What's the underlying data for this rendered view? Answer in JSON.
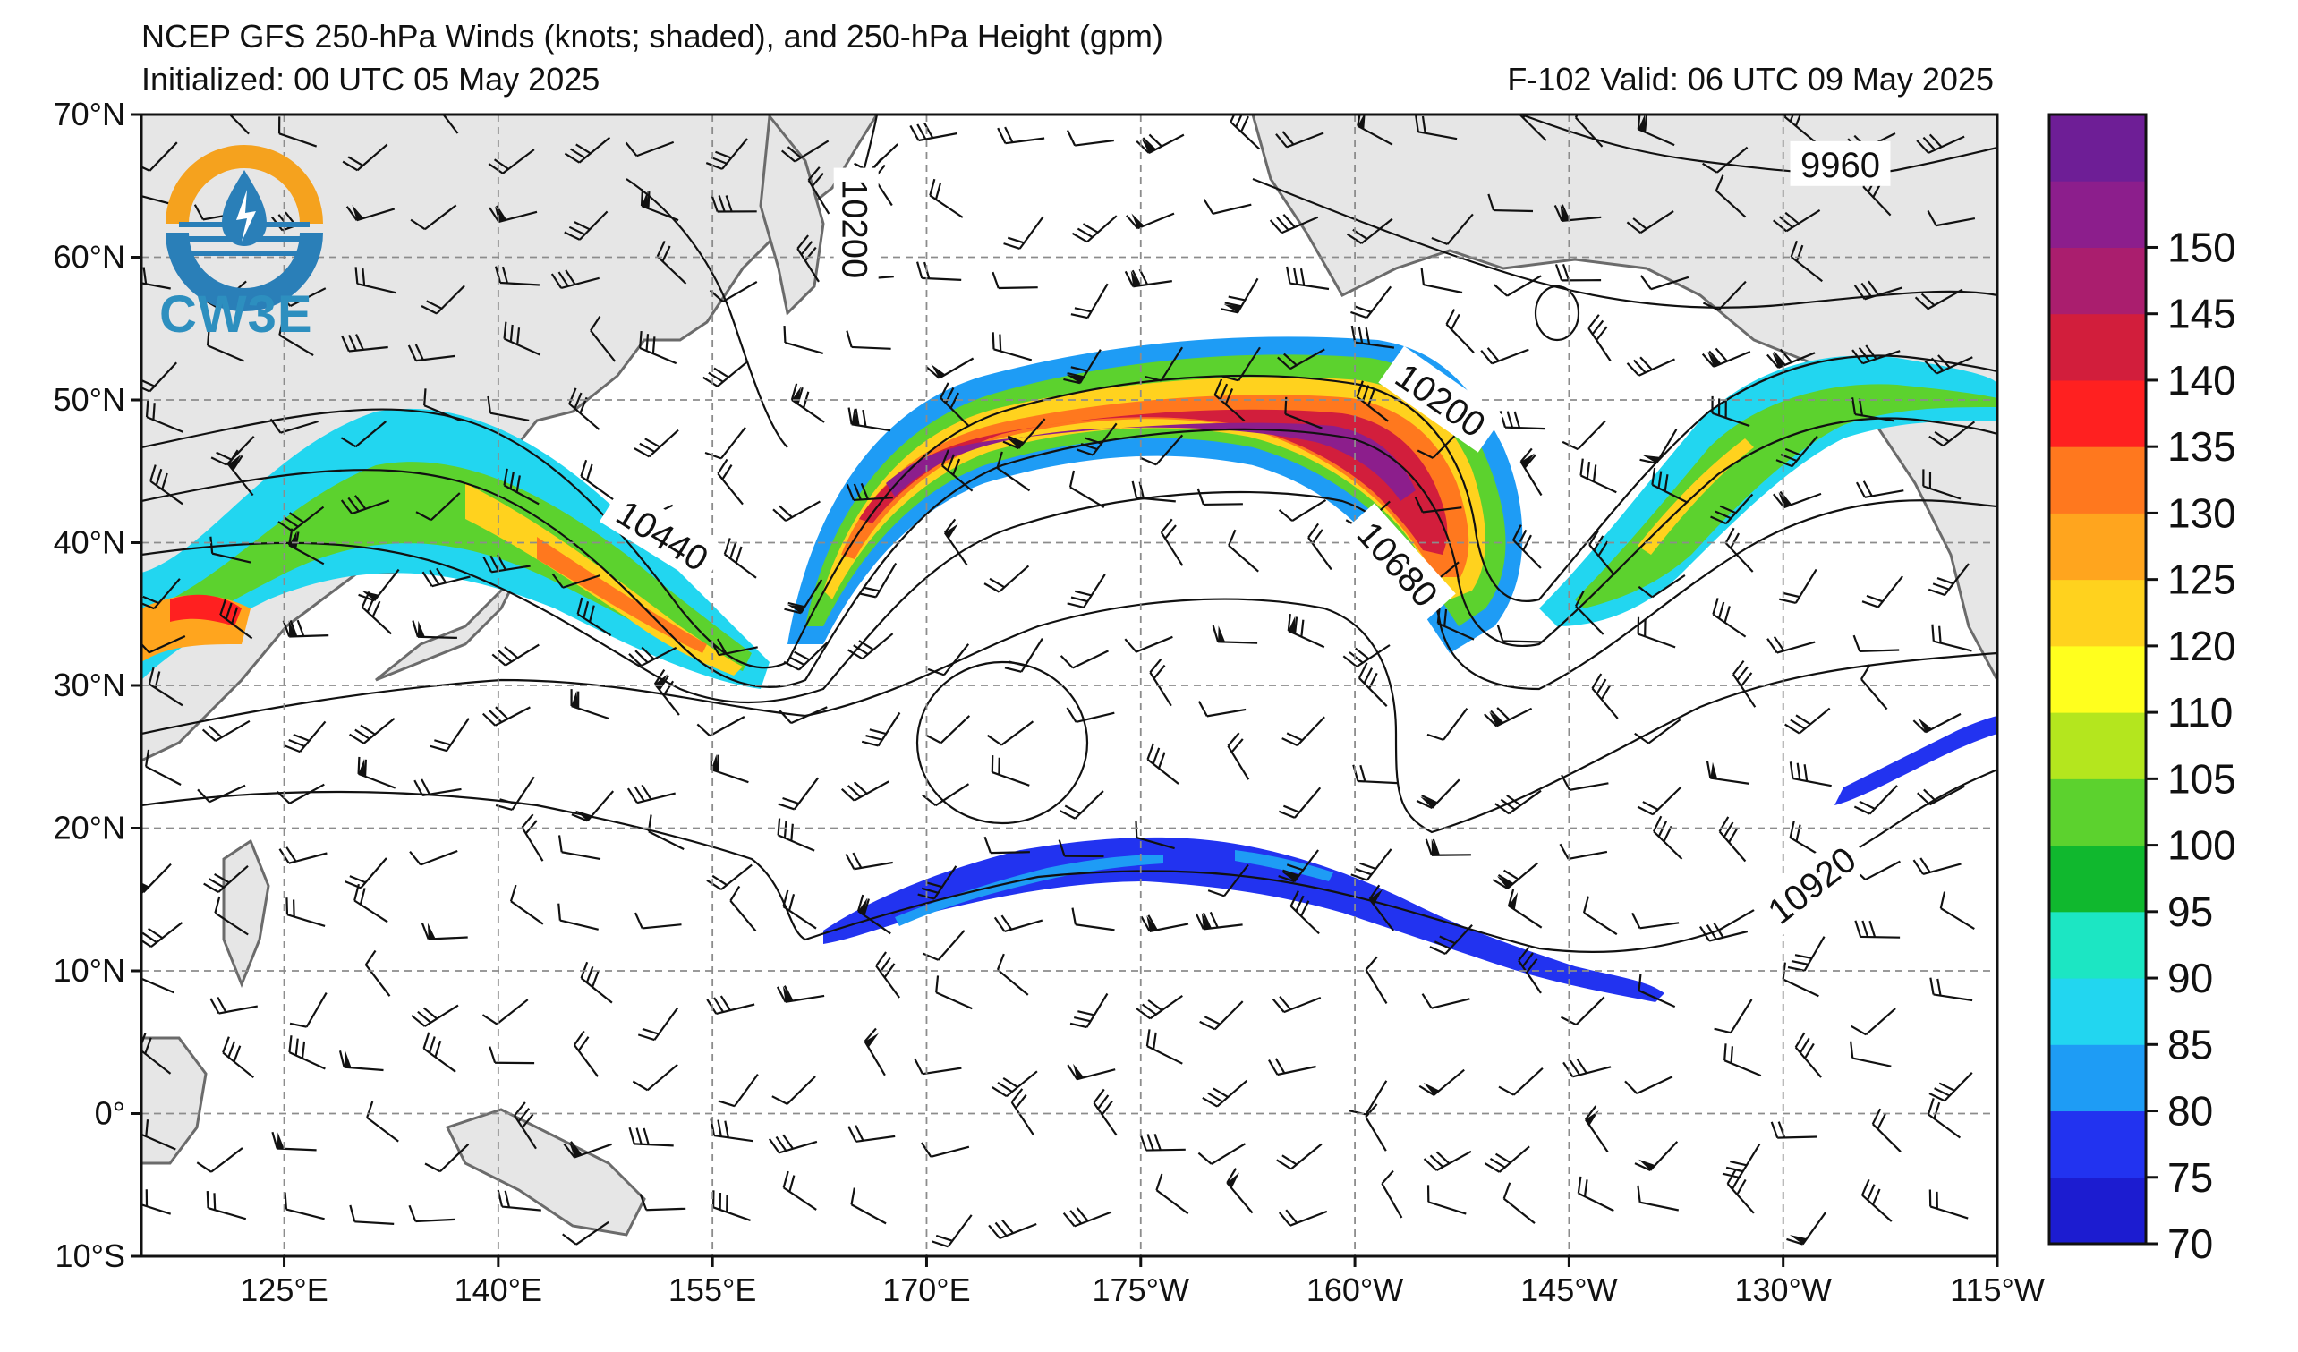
{
  "header": {
    "title": "NCEP GFS 250-hPa Winds (knots; shaded), and 250-hPa Height (gpm)",
    "initialized": "Initialized: 00 UTC 05 May 2025",
    "valid": "F-102  Valid: 06 UTC 09 May 2025"
  },
  "map": {
    "lat_range": [
      -10,
      70
    ],
    "lon_range": [
      115,
      245
    ],
    "lat_ticks": [
      {
        "value": 70,
        "label": "70°N"
      },
      {
        "value": 60,
        "label": "60°N"
      },
      {
        "value": 50,
        "label": "50°N"
      },
      {
        "value": 40,
        "label": "40°N"
      },
      {
        "value": 30,
        "label": "30°N"
      },
      {
        "value": 20,
        "label": "20°N"
      },
      {
        "value": 10,
        "label": "10°N"
      },
      {
        "value": 0,
        "label": "0°"
      },
      {
        "value": -10,
        "label": "10°S"
      }
    ],
    "lon_ticks": [
      {
        "value": 125,
        "label": "125°E"
      },
      {
        "value": 140,
        "label": "140°E"
      },
      {
        "value": 155,
        "label": "155°E"
      },
      {
        "value": 170,
        "label": "170°E"
      },
      {
        "value": 185,
        "label": "175°W"
      },
      {
        "value": 200,
        "label": "160°W"
      },
      {
        "value": 215,
        "label": "145°W"
      },
      {
        "value": 230,
        "label": "130°W"
      },
      {
        "value": 245,
        "label": "115°W"
      }
    ],
    "contour_labels": [
      {
        "text": "10200",
        "lon": 165,
        "lat": 62,
        "rot": 90
      },
      {
        "text": "9960",
        "lon": 234,
        "lat": 66.5,
        "rot": 0
      },
      {
        "text": "10440",
        "lon": 151.5,
        "lat": 40.5,
        "rot": 32
      },
      {
        "text": "10200",
        "lon": 206,
        "lat": 50,
        "rot": 35
      },
      {
        "text": "10680",
        "lon": 203,
        "lat": 38.5,
        "rot": 48
      },
      {
        "text": "10920",
        "lon": 232,
        "lat": 16,
        "rot": -38
      }
    ],
    "colors": {
      "land": "#e6e6e6",
      "coast": "#6b6b6b",
      "grid": "#8c8c8c"
    }
  },
  "colorbar": {
    "levels": [
      70,
      75,
      80,
      85,
      90,
      95,
      100,
      105,
      110,
      120,
      125,
      130,
      135,
      140,
      145,
      150
    ],
    "labels": [
      "70",
      "75",
      "80",
      "85",
      "90",
      "95",
      "100",
      "105",
      "110",
      "120",
      "125",
      "130",
      "135",
      "140",
      "145",
      "150"
    ],
    "colors": [
      "#1c1cd0",
      "#2233f0",
      "#1e9cf5",
      "#22d6f0",
      "#1ce6c3",
      "#10b82e",
      "#5cd22e",
      "#b4e61e",
      "#ffff1e",
      "#ffd21e",
      "#ffa51e",
      "#ff781e",
      "#ff2020",
      "#d21e3c",
      "#aa1e6e",
      "#8c1e8c",
      "#6e1e96"
    ]
  },
  "logo": {
    "text": "CW3E",
    "ring_colors": [
      "#f5a21e",
      "#2a7fb8"
    ]
  }
}
